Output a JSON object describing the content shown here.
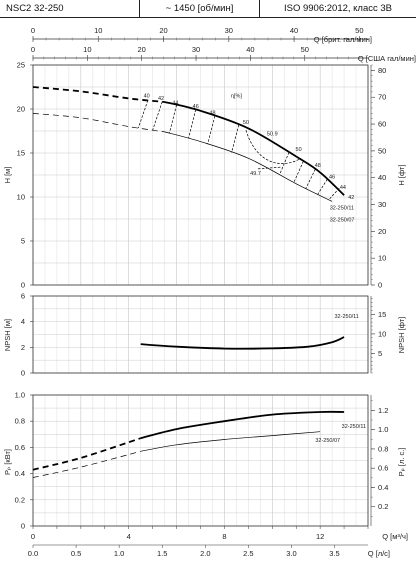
{
  "header": {
    "model": "NSC2 32-250",
    "speed": "~ 1450 [об/мин]",
    "standard": "ISO 9906:2012, класс 3B"
  },
  "axes": {
    "top1": {
      "label": "Q [брит. гал/мин]",
      "ticks": [
        0,
        10,
        20,
        30,
        40,
        50
      ]
    },
    "top2": {
      "label": "Q [США гал/мин]",
      "ticks": [
        0,
        10,
        20,
        30,
        40,
        50
      ]
    },
    "bottom1": {
      "label": "Q [м³/ч]",
      "ticks": [
        0,
        4,
        8,
        12
      ]
    },
    "bottom2": {
      "label": "Q [л/с]",
      "ticks": [
        "0.0",
        "0.5",
        "1.0",
        "1.5",
        "2.0",
        "2.5",
        "3.0",
        "3.5"
      ]
    },
    "head_left": {
      "label": "H [м]",
      "ticks": [
        0,
        5,
        10,
        15,
        20,
        25
      ]
    },
    "head_right": {
      "label": "H [фт]",
      "ticks": [
        0,
        10,
        20,
        30,
        40,
        50,
        60,
        70,
        80
      ]
    },
    "npsh_left": {
      "label": "NPSH [м]",
      "ticks": [
        0,
        2,
        4,
        6
      ]
    },
    "npsh_right": {
      "label": "NPSH [фт]",
      "ticks": [
        5,
        10,
        15
      ]
    },
    "power_left": {
      "label": "Pₚ [кВт]",
      "ticks": [
        "0",
        "0.2",
        "0.4",
        "0.6",
        "0.8",
        "1.0"
      ]
    },
    "power_right": {
      "label": "Pₚ [л. с.]",
      "ticks": [
        "0.2",
        "0.4",
        "0.6",
        "0.8",
        "1.0",
        "1.2"
      ]
    }
  },
  "labels": {
    "eta": "η[%]",
    "curve_11": "32-250/11",
    "curve_07": "32-250/07",
    "npsh_curve": "32-250/11",
    "power_11": "32-250/11",
    "power_07": "32-250/07"
  },
  "chart_data": [
    {
      "type": "line",
      "title": "",
      "xlabel": "Q [м³/ч]",
      "ylabel": "H [м]",
      "xlim": [
        0,
        14
      ],
      "ylim": [
        0,
        25
      ],
      "grid": true,
      "series": [
        {
          "name": "32-250/11",
          "x": [
            0,
            2,
            4,
            5.5,
            7,
            9,
            11,
            12,
            13
          ],
          "y": [
            22.5,
            22.0,
            21.2,
            20.8,
            19.8,
            17.8,
            14.6,
            12.8,
            10.2
          ]
        },
        {
          "name": "32-250/07",
          "x": [
            0,
            2,
            4,
            5.5,
            7,
            9,
            11,
            12.5
          ],
          "y": [
            19.5,
            19.0,
            18.0,
            17.4,
            16.3,
            14.4,
            11.5,
            9.5
          ]
        }
      ],
      "efficiency_labels": [
        "40",
        "42",
        "44",
        "46",
        "48",
        "50",
        "50.9",
        "49.7",
        "50",
        "48",
        "46",
        "44",
        "42"
      ]
    },
    {
      "type": "line",
      "title": "",
      "xlabel": "Q [м³/ч]",
      "ylabel": "NPSH [м]",
      "xlim": [
        0,
        14
      ],
      "ylim": [
        0,
        6
      ],
      "grid": true,
      "series": [
        {
          "name": "32-250/11",
          "x": [
            4.5,
            6,
            8,
            10,
            11.5,
            12.5,
            13
          ],
          "y": [
            2.25,
            2.05,
            1.9,
            1.92,
            2.05,
            2.4,
            2.8
          ]
        }
      ]
    },
    {
      "type": "line",
      "title": "",
      "xlabel": "Q [м³/ч]",
      "ylabel": "Pₚ [кВт]",
      "xlim": [
        0,
        14
      ],
      "ylim": [
        0,
        1.0
      ],
      "grid": true,
      "series": [
        {
          "name": "32-250/11",
          "x": [
            0,
            2,
            4.5,
            6,
            8,
            10,
            12,
            13
          ],
          "y": [
            0.43,
            0.52,
            0.67,
            0.74,
            0.8,
            0.85,
            0.87,
            0.87
          ]
        },
        {
          "name": "32-250/07",
          "x": [
            0,
            2,
            4.5,
            6,
            8,
            10,
            12
          ],
          "y": [
            0.37,
            0.45,
            0.57,
            0.62,
            0.66,
            0.69,
            0.72
          ]
        }
      ]
    }
  ]
}
